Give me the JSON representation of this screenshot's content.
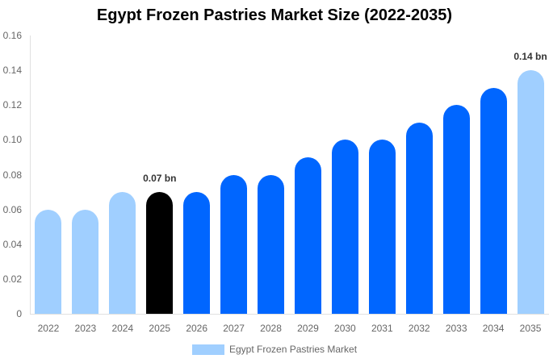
{
  "chart_data": {
    "type": "bar",
    "title": "Egypt Frozen Pastries Market Size (2022-2035)",
    "xlabel": "",
    "ylabel": "",
    "ylim": [
      0,
      0.16
    ],
    "yticks": [
      "0",
      "0.02",
      "0.04",
      "0.06",
      "0.08",
      "0.10",
      "0.12",
      "0.14",
      "0.16"
    ],
    "grid": false,
    "legend_position": "bottom",
    "categories": [
      "2022",
      "2023",
      "2024",
      "2025",
      "2026",
      "2027",
      "2028",
      "2029",
      "2030",
      "2031",
      "2032",
      "2033",
      "2034",
      "2035"
    ],
    "series": [
      {
        "name": "Egypt Frozen Pastries Market",
        "values": [
          0.06,
          0.06,
          0.07,
          0.07,
          0.07,
          0.08,
          0.08,
          0.09,
          0.1,
          0.1,
          0.11,
          0.12,
          0.13,
          0.14
        ],
        "colors": [
          "#a0cfff",
          "#a0cfff",
          "#a0cfff",
          "#000000",
          "#0066ff",
          "#0066ff",
          "#0066ff",
          "#0066ff",
          "#0066ff",
          "#0066ff",
          "#0066ff",
          "#0066ff",
          "#0066ff",
          "#a0cfff"
        ]
      }
    ],
    "annotations": [
      {
        "category": "2025",
        "text": "0.07 bn"
      },
      {
        "category": "2035",
        "text": "0.14 bn"
      }
    ]
  },
  "legend": {
    "label": "Egypt Frozen Pastries Market",
    "color": "#a0cfff"
  }
}
